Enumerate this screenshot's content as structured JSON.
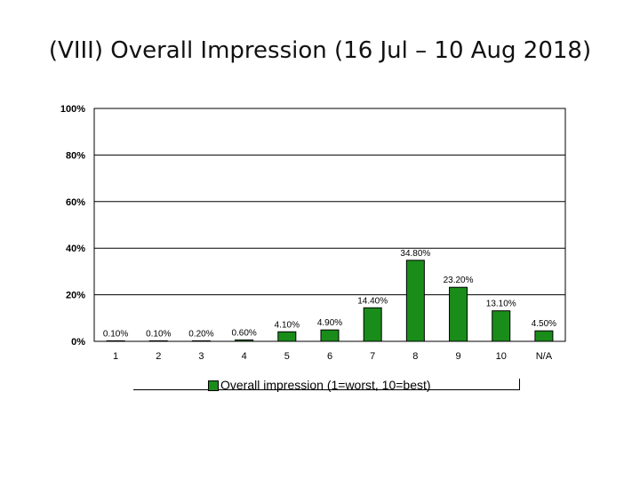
{
  "title": "(VIII) Overall Impression (16 Jul – 10 Aug 2018)",
  "chart_data": {
    "type": "bar",
    "categories": [
      "1",
      "2",
      "3",
      "4",
      "5",
      "6",
      "7",
      "8",
      "9",
      "10",
      "N/A"
    ],
    "series": [
      {
        "name": "Overall impression (1=worst, 10=best)",
        "values": [
          0.1,
          0.1,
          0.2,
          0.6,
          4.1,
          4.9,
          14.4,
          34.8,
          23.2,
          13.1,
          4.5
        ],
        "labels": [
          "0.10%",
          "0.10%",
          "0.20%",
          "0.60%",
          "4.10%",
          "4.90%",
          "14.40%",
          "34.80%",
          "23.20%",
          "13.10%",
          "4.50%"
        ]
      }
    ],
    "ylim": [
      0,
      100
    ],
    "yticks": [
      "0%",
      "20%",
      "40%",
      "60%",
      "80%",
      "100%"
    ],
    "ytick_values": [
      0,
      20,
      40,
      60,
      80,
      100
    ],
    "grid": true,
    "legend_position": "bottom",
    "colors": {
      "bar": "#1a8c1a",
      "bar_edge": "#000000",
      "grid": "#000000"
    }
  }
}
